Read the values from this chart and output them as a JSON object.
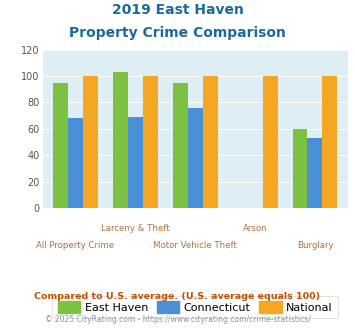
{
  "title_line1": "2019 East Haven",
  "title_line2": "Property Crime Comparison",
  "categories": [
    "All Property Crime",
    "Larceny & Theft",
    "Motor Vehicle Theft",
    "Arson",
    "Burglary"
  ],
  "x_labels_row1": [
    "",
    "Larceny & Theft",
    "",
    "Arson",
    ""
  ],
  "x_labels_row2": [
    "All Property Crime",
    "",
    "Motor Vehicle Theft",
    "",
    "Burglary"
  ],
  "east_haven": [
    95,
    103,
    95,
    0,
    60
  ],
  "connecticut": [
    68,
    69,
    76,
    0,
    53
  ],
  "national": [
    100,
    100,
    100,
    100,
    100
  ],
  "color_east_haven": "#7dc142",
  "color_connecticut": "#4a90d9",
  "color_national": "#f5a623",
  "color_bg_chart": "#ddeef5",
  "ylim": [
    0,
    120
  ],
  "yticks": [
    0,
    20,
    40,
    60,
    80,
    100,
    120
  ],
  "title_color": "#1a6aa0",
  "xlabel_color1": "#b07040",
  "xlabel_color2": "#b07040",
  "footnote1": "Compared to U.S. average. (U.S. average equals 100)",
  "footnote2": "© 2025 CityRating.com - https://www.cityrating.com/crime-statistics/",
  "footnote1_color": "#c05000",
  "footnote2_color": "#8899aa",
  "legend_labels": [
    "East Haven",
    "Connecticut",
    "National"
  ],
  "bar_width": 0.25
}
